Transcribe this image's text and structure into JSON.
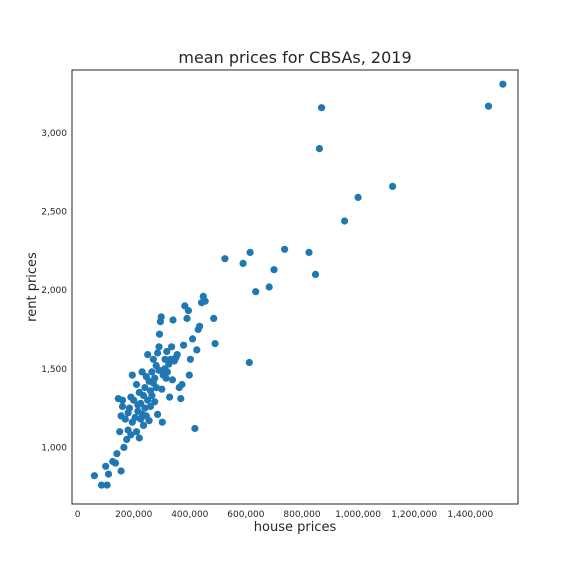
{
  "chart_data": {
    "type": "scatter",
    "title": "mean prices for CBSAs, 2019",
    "xlabel": "house prices",
    "ylabel": "rent prices",
    "xlim": [
      -20000,
      1570000
    ],
    "ylim": [
      640,
      3400
    ],
    "xticks": [
      0,
      200000,
      400000,
      600000,
      800000,
      1000000,
      1200000,
      1400000
    ],
    "xtick_labels": [
      "0",
      "200,000",
      "400,000",
      "600,000",
      "800,000",
      "1,000,000",
      "1,200,000",
      "1,400,000"
    ],
    "yticks": [
      1000,
      1500,
      2000,
      2500,
      3000
    ],
    "ytick_labels": [
      "1,000",
      "1,500",
      "2,000",
      "2,500",
      "3,000"
    ],
    "grid": false,
    "legend": "none",
    "marker_color": "#1f77b4",
    "points": [
      [
        60000,
        820
      ],
      [
        85000,
        760
      ],
      [
        100000,
        880
      ],
      [
        105000,
        760
      ],
      [
        110000,
        830
      ],
      [
        125000,
        910
      ],
      [
        135000,
        900
      ],
      [
        140000,
        960
      ],
      [
        150000,
        1100
      ],
      [
        155000,
        850
      ],
      [
        145000,
        1310
      ],
      [
        155000,
        1200
      ],
      [
        160000,
        1260
      ],
      [
        160000,
        1300
      ],
      [
        165000,
        1000
      ],
      [
        170000,
        1180
      ],
      [
        175000,
        1050
      ],
      [
        180000,
        1110
      ],
      [
        180000,
        1220
      ],
      [
        185000,
        1250
      ],
      [
        190000,
        1080
      ],
      [
        190000,
        1320
      ],
      [
        195000,
        1160
      ],
      [
        195000,
        1460
      ],
      [
        200000,
        1300
      ],
      [
        205000,
        1190
      ],
      [
        210000,
        1100
      ],
      [
        210000,
        1400
      ],
      [
        215000,
        1230
      ],
      [
        215000,
        1270
      ],
      [
        220000,
        1060
      ],
      [
        220000,
        1350
      ],
      [
        225000,
        1180
      ],
      [
        225000,
        1280
      ],
      [
        230000,
        1210
      ],
      [
        230000,
        1480
      ],
      [
        235000,
        1140
      ],
      [
        235000,
        1330
      ],
      [
        240000,
        1250
      ],
      [
        240000,
        1380
      ],
      [
        245000,
        1200
      ],
      [
        245000,
        1450
      ],
      [
        250000,
        1300
      ],
      [
        250000,
        1590
      ],
      [
        255000,
        1170
      ],
      [
        255000,
        1420
      ],
      [
        260000,
        1260
      ],
      [
        260000,
        1360
      ],
      [
        265000,
        1480
      ],
      [
        265000,
        1330
      ],
      [
        270000,
        1410
      ],
      [
        270000,
        1560
      ],
      [
        275000,
        1290
      ],
      [
        275000,
        1440
      ],
      [
        280000,
        1520
      ],
      [
        280000,
        1380
      ],
      [
        285000,
        1600
      ],
      [
        285000,
        1210
      ],
      [
        290000,
        1490
      ],
      [
        290000,
        1640
      ],
      [
        292000,
        1720
      ],
      [
        295000,
        1800
      ],
      [
        298000,
        1830
      ],
      [
        300000,
        1370
      ],
      [
        302000,
        1160
      ],
      [
        305000,
        1460
      ],
      [
        310000,
        1500
      ],
      [
        312000,
        1560
      ],
      [
        315000,
        1440
      ],
      [
        318000,
        1610
      ],
      [
        320000,
        1480
      ],
      [
        325000,
        1530
      ],
      [
        328000,
        1320
      ],
      [
        332000,
        1560
      ],
      [
        335000,
        1640
      ],
      [
        338000,
        1430
      ],
      [
        340000,
        1810
      ],
      [
        345000,
        1550
      ],
      [
        350000,
        1570
      ],
      [
        355000,
        1590
      ],
      [
        362000,
        1380
      ],
      [
        368000,
        1310
      ],
      [
        372000,
        1400
      ],
      [
        378000,
        1650
      ],
      [
        382000,
        1900
      ],
      [
        390000,
        1820
      ],
      [
        395000,
        1870
      ],
      [
        398000,
        1460
      ],
      [
        402000,
        1560
      ],
      [
        410000,
        1690
      ],
      [
        418000,
        1120
      ],
      [
        425000,
        1620
      ],
      [
        430000,
        1750
      ],
      [
        435000,
        1770
      ],
      [
        442000,
        1920
      ],
      [
        448000,
        1960
      ],
      [
        455000,
        1930
      ],
      [
        485000,
        1820
      ],
      [
        490000,
        1660
      ],
      [
        525000,
        2200
      ],
      [
        590000,
        2170
      ],
      [
        612000,
        1540
      ],
      [
        615000,
        2240
      ],
      [
        635000,
        1990
      ],
      [
        683000,
        2020
      ],
      [
        700000,
        2130
      ],
      [
        738000,
        2260
      ],
      [
        825000,
        2240
      ],
      [
        848000,
        2100
      ],
      [
        862000,
        2900
      ],
      [
        870000,
        3160
      ],
      [
        952000,
        2440
      ],
      [
        1000000,
        2590
      ],
      [
        1123000,
        2660
      ],
      [
        1465000,
        3170
      ],
      [
        1516000,
        3310
      ]
    ]
  }
}
